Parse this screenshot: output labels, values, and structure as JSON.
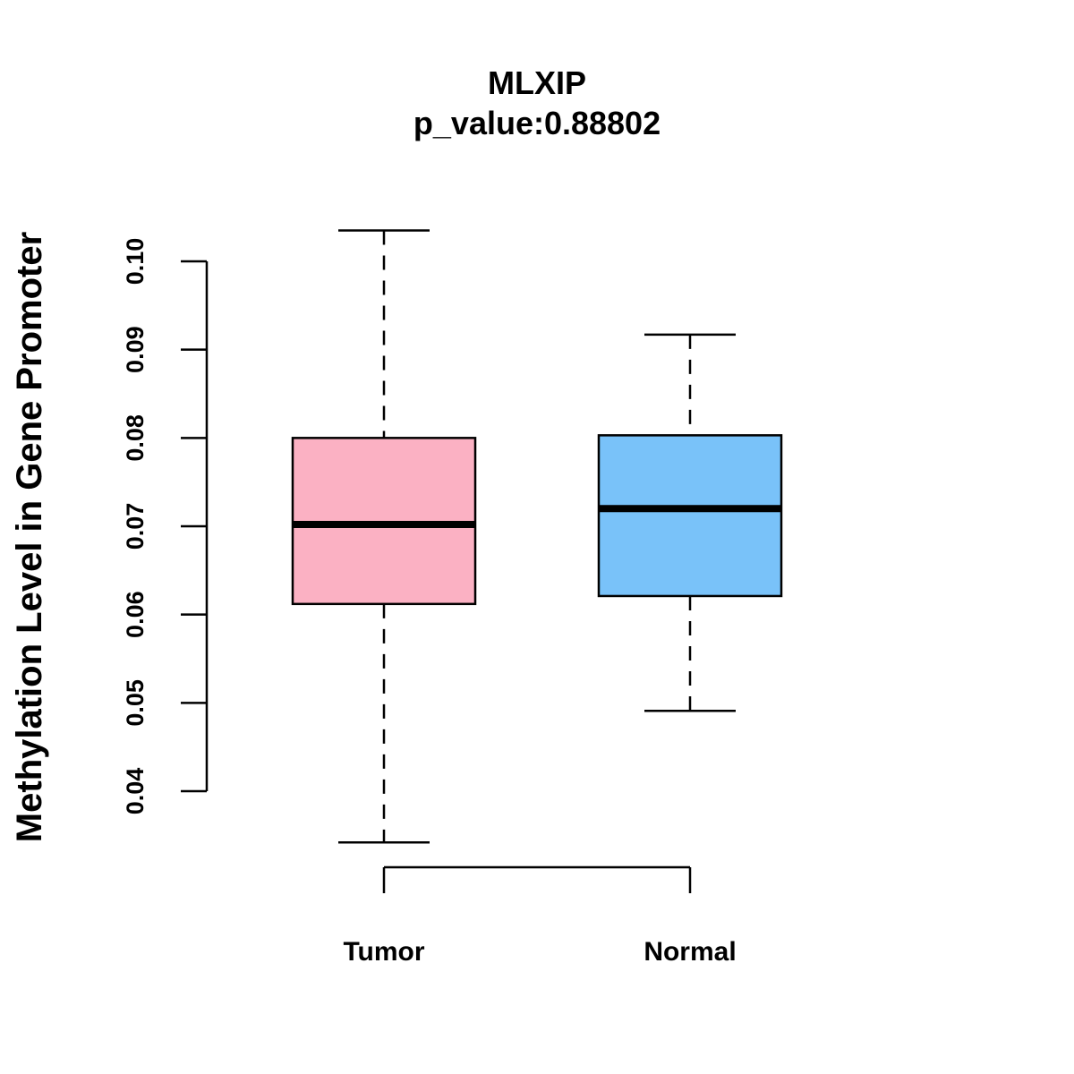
{
  "chart_data": {
    "type": "boxplot",
    "title": "MLXIP",
    "subtitle": "p_value:0.88802",
    "xlabel": "",
    "ylabel": "Methylation Level in Gene Promoter",
    "ylim": [
      0.04,
      0.1
    ],
    "yticks": [
      "0.04",
      "0.05",
      "0.06",
      "0.07",
      "0.08",
      "0.09",
      "0.10"
    ],
    "ytick_values": [
      0.04,
      0.05,
      0.06,
      0.07,
      0.08,
      0.09,
      0.1
    ],
    "categories": [
      "Tumor",
      "Normal"
    ],
    "series": [
      {
        "name": "Tumor",
        "color": "#FBB1C3",
        "min": 0.0342,
        "q1": 0.0612,
        "median": 0.0702,
        "q3": 0.08,
        "max": 0.1035
      },
      {
        "name": "Normal",
        "color": "#79C2F9",
        "min": 0.0491,
        "q1": 0.0621,
        "median": 0.072,
        "q3": 0.0803,
        "max": 0.0917
      }
    ],
    "grid": false,
    "legend": "none"
  }
}
